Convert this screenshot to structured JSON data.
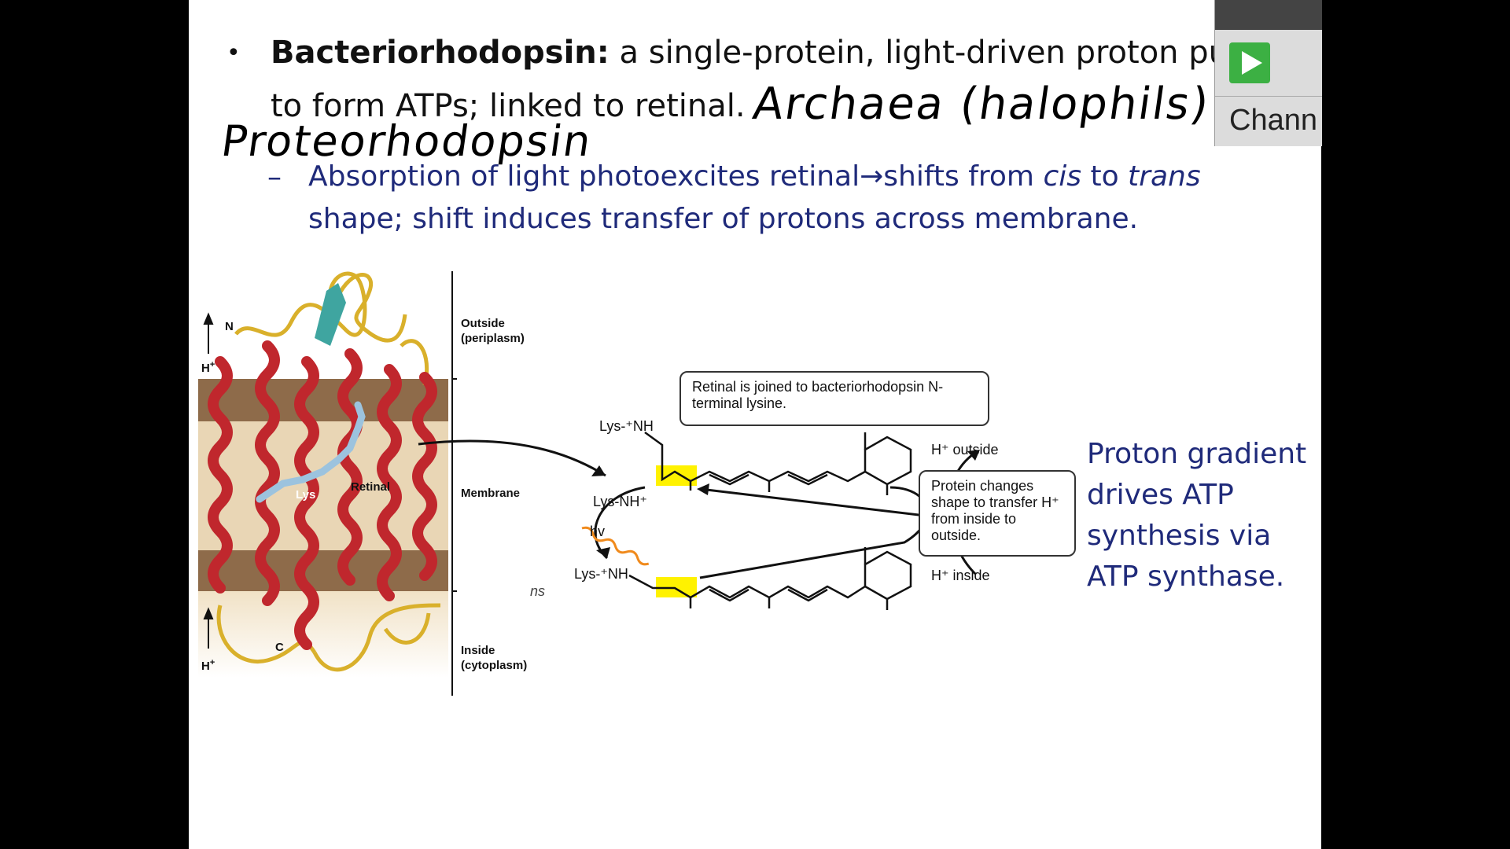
{
  "bullet": {
    "term": "Bacteriorhodopsin:",
    "text1": " a single-protein, light-driven proton pump",
    "text2": "to form ATPs; linked to retinal."
  },
  "sub_bullet": {
    "dash": "–",
    "part1": "Absorption of light photoexcites retinal",
    "arrow": "→",
    "part2": "shifts from ",
    "cis": "cis",
    "part3": " to ",
    "trans": "trans",
    "line2": "shape; shift induces transfer of protons across membrane."
  },
  "handwriting": {
    "note1": "Archaea (halophils)",
    "note2": "Proteorhodopsin"
  },
  "figure": {
    "outside_label": "Outside\n(periplasm)",
    "membrane_label": "Membrane",
    "inside_label": "Inside\n(cytoplasm)",
    "n_label": "N",
    "c_label": "C",
    "h_top": "H",
    "h_bottom": "H",
    "lys_label": "Lys",
    "retinal_label": "Retinal",
    "callout_top": "Retinal is joined to bacteriorhodopsin N-terminal lysine.",
    "callout_right": "Protein changes shape to transfer H⁺ from inside to outside.",
    "lys_top": "Lys-⁺NH",
    "lys_mid": "Lys-NH⁺",
    "lys_bottom": "Lys-⁺NH",
    "hv": "hv",
    "h_outside": "H⁺ outside",
    "h_inside": "H⁺ inside",
    "ns_fragment": "ns"
  },
  "side_note": "Proton gradient drives ATP synthesis via ATP synthase.",
  "overlay": {
    "channel_label": "Chann"
  },
  "colors": {
    "helix": "#c0272d",
    "loop": "#d9b02b",
    "membrane_dark": "#8e6b4a",
    "membrane_light": "#e9d6b5",
    "highlight": "#fff200",
    "blue_text": "#1f2a7a"
  }
}
